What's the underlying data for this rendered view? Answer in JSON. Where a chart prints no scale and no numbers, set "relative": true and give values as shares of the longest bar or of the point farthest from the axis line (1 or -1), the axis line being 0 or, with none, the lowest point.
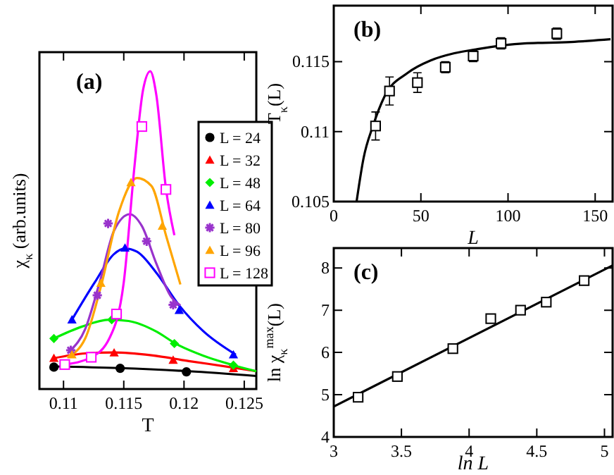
{
  "chart_data": [
    {
      "type": "scatter",
      "xlabel": "T",
      "ylabel": "χ$_{κ}$ (arb.units)",
      "relative": true,
      "xlim": [
        0.108,
        0.126
      ],
      "xticks": [
        0.11,
        0.115,
        0.12,
        0.125
      ],
      "legend": "right",
      "annotations": [
        "(a)"
      ],
      "series": [
        {
          "type": "line",
          "color": "#000000",
          "marker": "none",
          "x": [
            0.1092,
            0.1146,
            0.1204,
            0.126
          ],
          "values": [
            0.071,
            0.066,
            0.056,
            0.041
          ]
        },
        {
          "type": "line",
          "color": "#ff0000",
          "marker": "none",
          "x": [
            0.1092,
            0.1118,
            0.1142,
            0.1173,
            0.1204,
            0.124,
            0.126
          ],
          "values": [
            0.097,
            0.112,
            0.115,
            0.106,
            0.088,
            0.068,
            0.056
          ]
        },
        {
          "type": "line",
          "color": "#00ee00",
          "marker": "none",
          "x": [
            0.1092,
            0.1115,
            0.1138,
            0.1154,
            0.1177,
            0.1193,
            0.1216,
            0.1241,
            0.126
          ],
          "values": [
            0.159,
            0.196,
            0.218,
            0.214,
            0.181,
            0.143,
            0.105,
            0.075,
            0.056
          ]
        },
        {
          "type": "line",
          "color": "#0000ff",
          "marker": "none",
          "x": [
            0.1107,
            0.1126,
            0.1142,
            0.1151,
            0.1161,
            0.1177,
            0.1196,
            0.1216,
            0.1243
          ],
          "values": [
            0.218,
            0.336,
            0.425,
            0.442,
            0.432,
            0.366,
            0.263,
            0.182,
            0.108
          ]
        },
        {
          "type": "line",
          "color": "#9933cc",
          "marker": "none",
          "x": [
            0.1106,
            0.1118,
            0.113,
            0.1142,
            0.1155,
            0.1165,
            0.1177,
            0.1189,
            0.1197
          ],
          "values": [
            0.122,
            0.189,
            0.336,
            0.499,
            0.55,
            0.513,
            0.395,
            0.292,
            0.263
          ]
        },
        {
          "type": "line",
          "color": "#ffa500",
          "marker": "none",
          "x": [
            0.1103,
            0.1118,
            0.1131,
            0.1146,
            0.1161,
            0.1173,
            0.1185,
            0.1197
          ],
          "values": [
            0.1,
            0.159,
            0.322,
            0.558,
            0.664,
            0.639,
            0.484,
            0.329
          ]
        },
        {
          "type": "line",
          "color": "#ff00ff",
          "marker": "none",
          "x": [
            0.1101,
            0.1123,
            0.1138,
            0.115,
            0.1159,
            0.1166,
            0.1172,
            0.1177,
            0.1185,
            0.1192
          ],
          "values": [
            0.077,
            0.1,
            0.159,
            0.336,
            0.705,
            0.941,
            1,
            0.926,
            0.631,
            0.484
          ]
        },
        {
          "type": "scatter",
          "name": "L = 24",
          "color": "#000000",
          "marker": "circle",
          "x": [
            0.1092,
            0.1147,
            0.1202
          ],
          "values": [
            0.069,
            0.065,
            0.054
          ]
        },
        {
          "type": "scatter",
          "name": "L = 32",
          "color": "#ff0000",
          "marker": "triangle",
          "x": [
            0.1092,
            0.1142,
            0.1191,
            0.1241
          ],
          "values": [
            0.097,
            0.114,
            0.091,
            0.065
          ]
        },
        {
          "type": "scatter",
          "name": "L = 48",
          "color": "#00ee00",
          "marker": "diamond",
          "x": [
            0.1092,
            0.114,
            0.1192,
            0.1241
          ],
          "values": [
            0.159,
            0.218,
            0.143,
            0.075
          ]
        },
        {
          "type": "scatter",
          "name": "L = 64",
          "color": "#0000ff",
          "marker": "triangle",
          "x": [
            0.1107,
            0.1151,
            0.1196,
            0.1241
          ],
          "values": [
            0.218,
            0.444,
            0.248,
            0.108
          ]
        },
        {
          "type": "scatter",
          "name": "L = 80",
          "color": "#9933cc",
          "marker": "cross",
          "x": [
            0.1106,
            0.1128,
            0.1137,
            0.1169,
            0.1191
          ],
          "values": [
            0.122,
            0.295,
            0.521,
            0.465,
            0.265
          ]
        },
        {
          "type": "scatter",
          "name": "L = 96",
          "color": "#ffa500",
          "marker": "triangle",
          "x": [
            0.1107,
            0.1131,
            0.1156,
            0.1182
          ],
          "values": [
            0.108,
            0.333,
            0.65,
            0.513
          ]
        },
        {
          "type": "scatter",
          "name": "L = 128",
          "color": "#ff00ff",
          "marker": "square",
          "x": [
            0.1101,
            0.1123,
            0.1144,
            0.1165,
            0.1185
          ],
          "values": [
            0.077,
            0.1,
            0.236,
            0.826,
            0.628
          ]
        }
      ]
    },
    {
      "type": "scatter",
      "xlabel": "L",
      "ylabel": "T$_{κ}$(L)",
      "xlim": [
        0,
        160
      ],
      "xticks": [
        0,
        50,
        100,
        150
      ],
      "ylim": [
        0.105,
        0.119
      ],
      "yticks": [
        0.105,
        0.11,
        0.115
      ],
      "annotations": [
        "(b)"
      ],
      "series": [
        {
          "type": "line",
          "color": "#000000",
          "marker": "none",
          "x": [
            13.1,
            17.1,
            22.5,
            29.1,
            42.5,
            55.9,
            69.2,
            82.6,
            109.3,
            136.1,
            158.8
          ],
          "values": [
            0.105,
            0.1081,
            0.1104,
            0.1125,
            0.1142,
            0.1151,
            0.1156,
            0.1159,
            0.1163,
            0.1164,
            0.1166
          ]
        },
        {
          "type": "scatter",
          "color": "#000000",
          "marker": "square",
          "x": [
            24,
            32,
            48,
            64,
            80,
            96,
            128
          ],
          "values": [
            0.1104,
            0.1129,
            0.1135,
            0.1146,
            0.1154,
            0.1163,
            0.117
          ],
          "errors": [
            0.001,
            0.001,
            0.0007,
            0.0004,
            0.0004,
            0.0004,
            0.0004
          ]
        }
      ]
    },
    {
      "type": "scatter",
      "xlabel": "ln L",
      "ylabel": "ln χ$_{κ}$$^{max}$(L)",
      "xlim": [
        3,
        5.06
      ],
      "xticks": [
        3,
        3.5,
        4,
        4.5,
        5
      ],
      "ylim": [
        4,
        8.47
      ],
      "yticks": [
        4,
        5,
        6,
        7,
        8
      ],
      "annotations": [
        "(c)"
      ],
      "series": [
        {
          "type": "line",
          "color": "#000000",
          "marker": "none",
          "x": [
            3,
            5.06
          ],
          "values": [
            4.72,
            8.06
          ]
        },
        {
          "type": "scatter",
          "color": "#000000",
          "marker": "square",
          "x": [
            3.18,
            3.47,
            3.88,
            4.16,
            4.38,
            4.57,
            4.85
          ],
          "values": [
            4.94,
            5.43,
            6.09,
            6.8,
            7.0,
            7.19,
            7.7
          ]
        }
      ]
    }
  ]
}
